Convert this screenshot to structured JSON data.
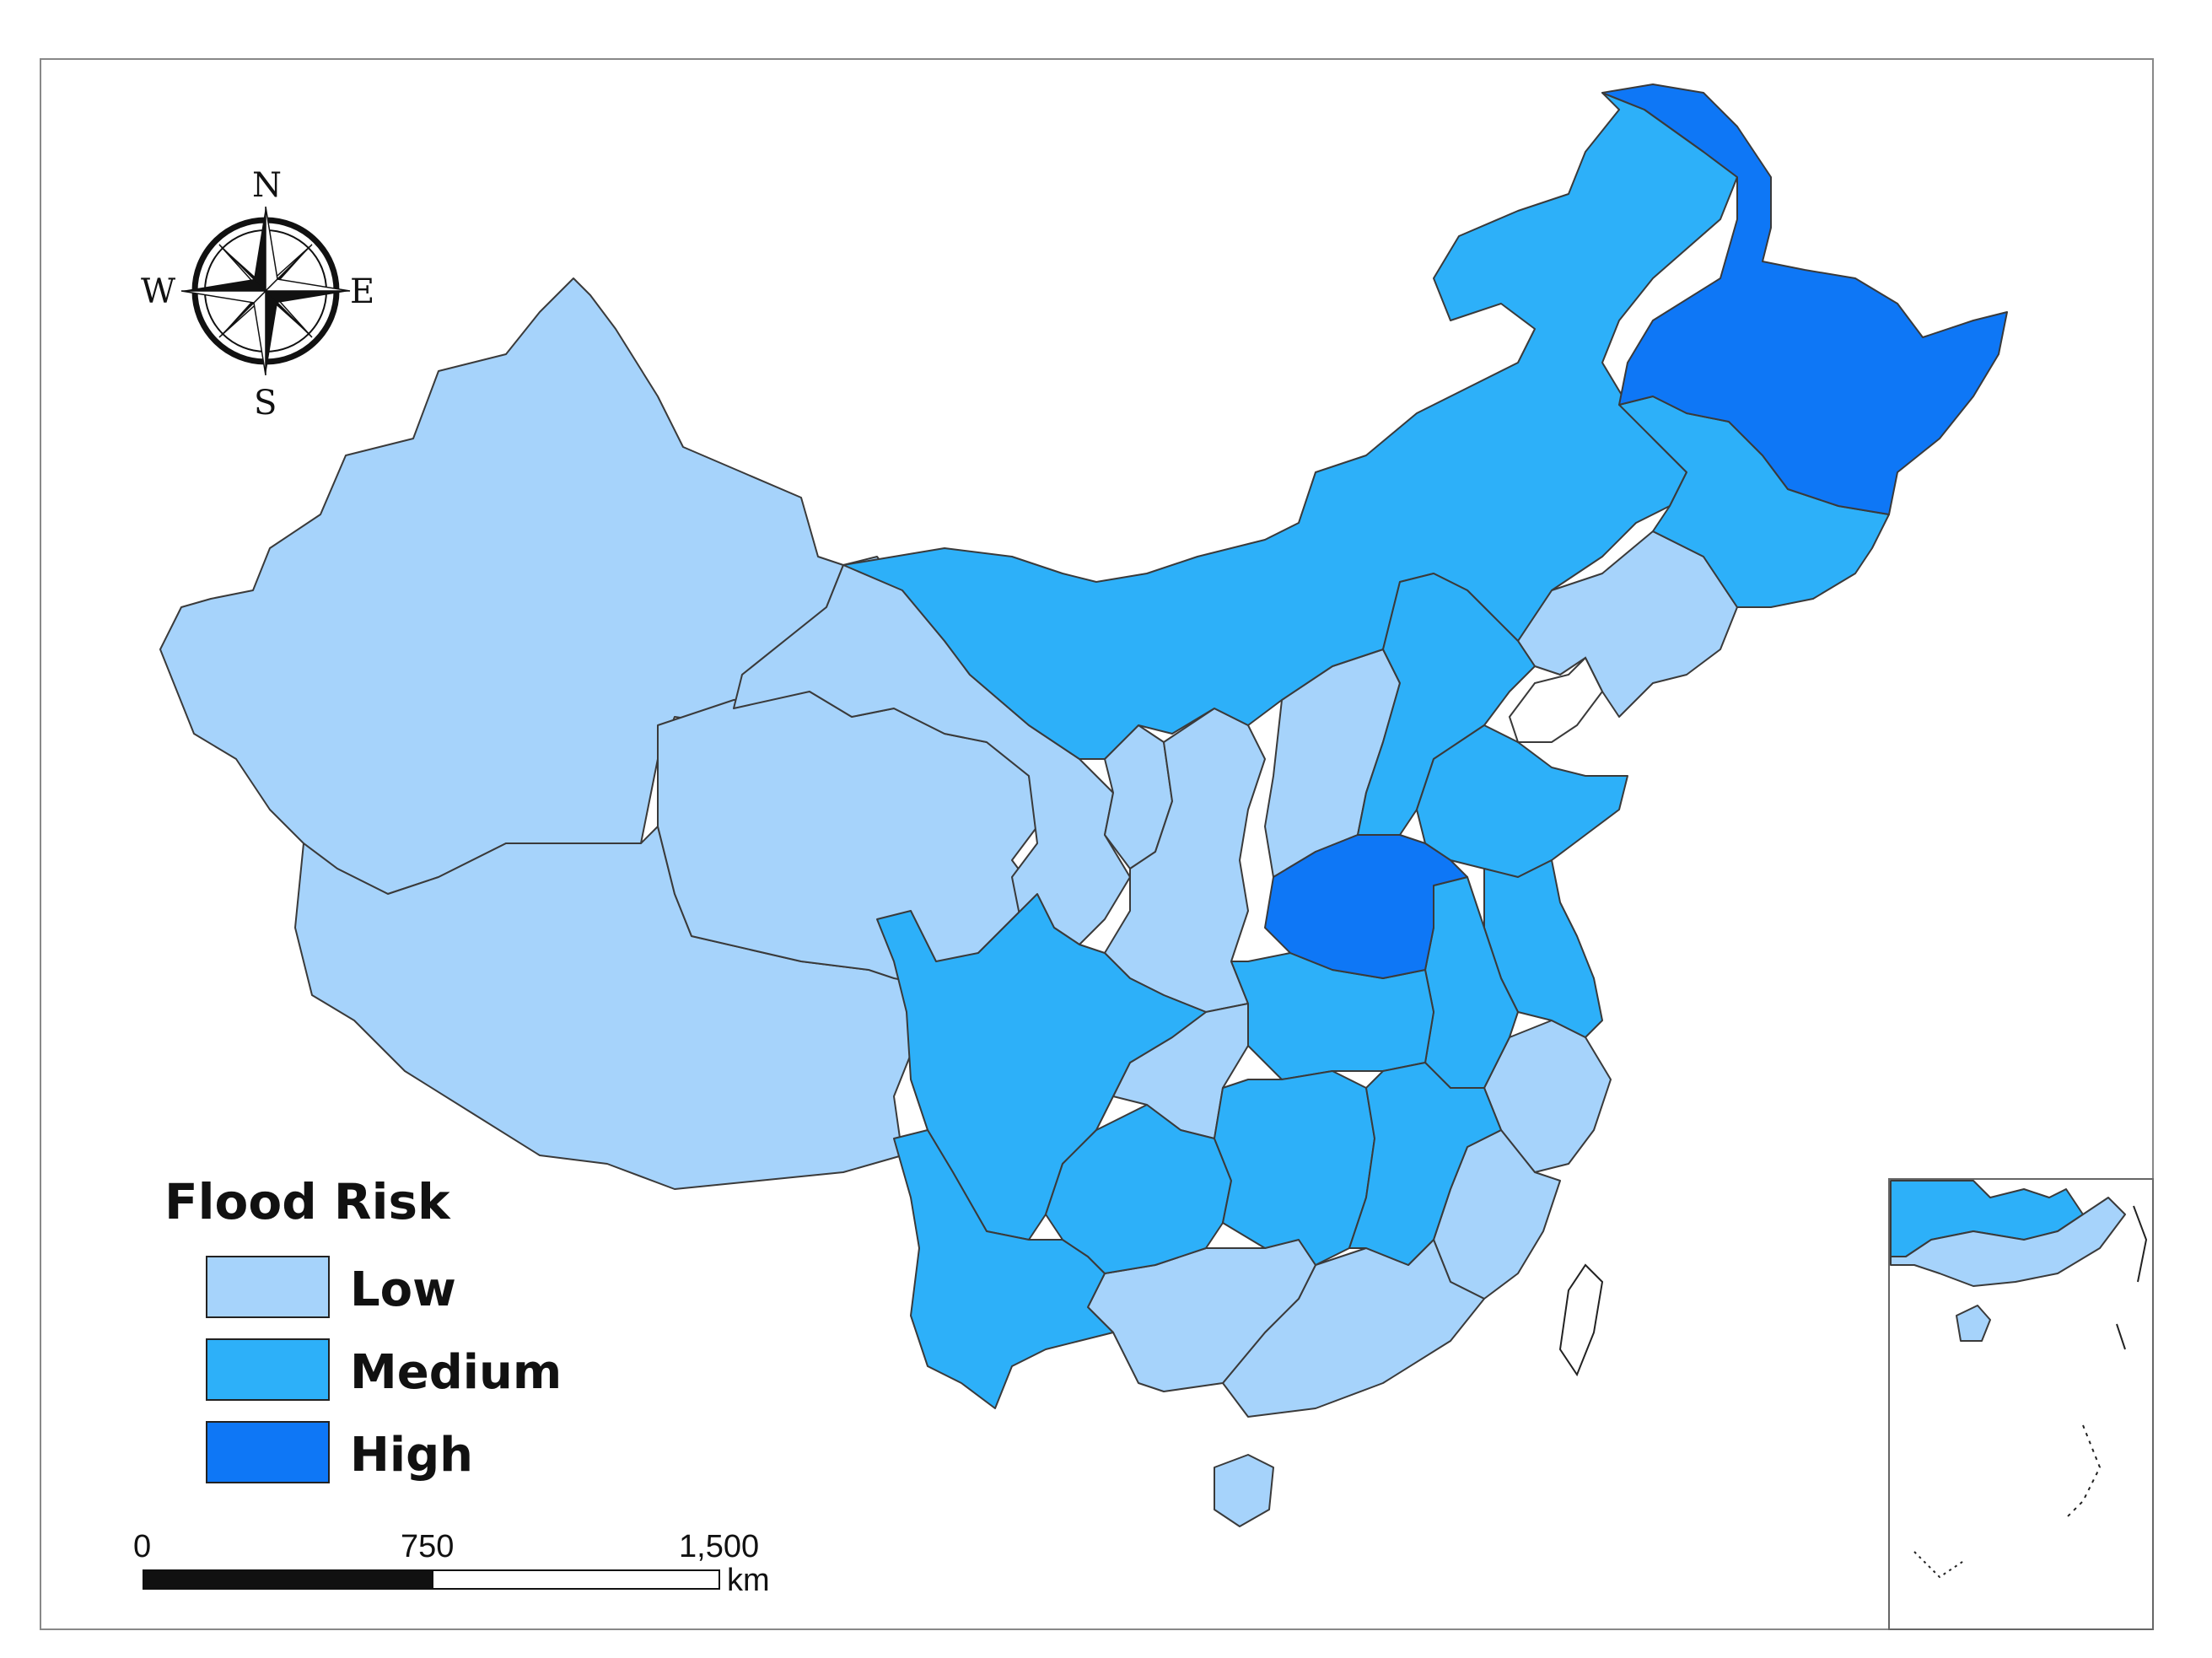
{
  "compass": {
    "n": "N",
    "s": "S",
    "e": "E",
    "w": "W"
  },
  "legend": {
    "title": "Flood Risk",
    "items": [
      {
        "key": "low",
        "label": "Low",
        "color": "#a6d3fb"
      },
      {
        "key": "medium",
        "label": "Medium",
        "color": "#2db0f9"
      },
      {
        "key": "high",
        "label": "High",
        "color": "#0e77f6"
      }
    ]
  },
  "scale_bar": {
    "ticks": [
      "0",
      "750",
      "1,500"
    ],
    "unit": "km"
  },
  "colors": {
    "low": "#a6d3fb",
    "medium": "#2db0f9",
    "high": "#0e77f6",
    "outline": "#3a3a3a"
  }
}
